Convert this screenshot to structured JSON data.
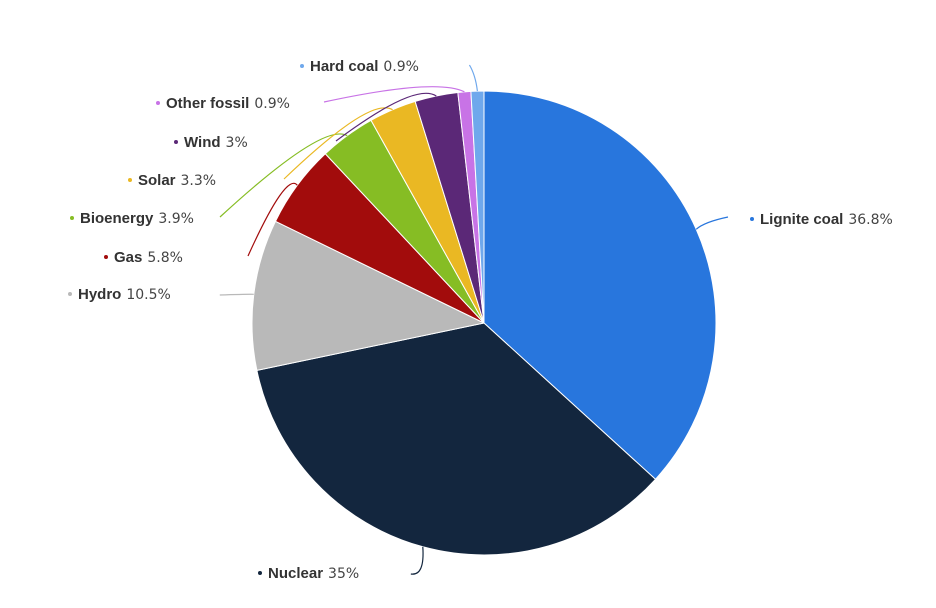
{
  "chart_data": {
    "type": "pie",
    "title": "",
    "unit": "%",
    "slices": [
      {
        "label": "Lignite coal",
        "value": 36.8,
        "display_value": "36.8%",
        "color": "#2876dd"
      },
      {
        "label": "Nuclear",
        "value": 35,
        "display_value": "35%",
        "color": "#13263e"
      },
      {
        "label": "Hydro",
        "value": 10.5,
        "display_value": "10.5%",
        "color": "#b9b9b9"
      },
      {
        "label": "Gas",
        "value": 5.8,
        "display_value": "5.8%",
        "color": "#a20c0c"
      },
      {
        "label": "Bioenergy",
        "value": 3.9,
        "display_value": "3.9%",
        "color": "#86bd24"
      },
      {
        "label": "Solar",
        "value": 3.3,
        "display_value": "3.3%",
        "color": "#eab823"
      },
      {
        "label": "Wind",
        "value": 3,
        "display_value": "3%",
        "color": "#5b2877"
      },
      {
        "label": "Other fossil",
        "value": 0.9,
        "display_value": "0.9%",
        "color": "#c873e6"
      },
      {
        "label": "Hard coal",
        "value": 0.9,
        "display_value": "0.9%",
        "color": "#6fa8ec"
      }
    ]
  }
}
